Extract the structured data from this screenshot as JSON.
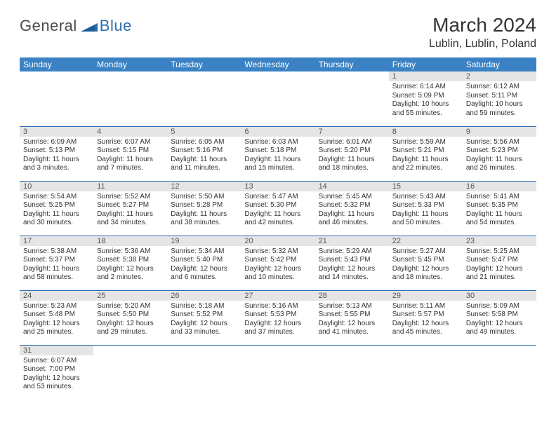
{
  "brand": {
    "general": "General",
    "blue": "Blue"
  },
  "title": "March 2024",
  "location": "Lublin, Lublin, Poland",
  "header_bg": "#3b82c4",
  "border_color": "#2a6db0",
  "daynum_bg": "#e5e5e5",
  "dayNames": [
    "Sunday",
    "Monday",
    "Tuesday",
    "Wednesday",
    "Thursday",
    "Friday",
    "Saturday"
  ],
  "weeks": [
    [
      null,
      null,
      null,
      null,
      null,
      {
        "n": "1",
        "sr": "Sunrise: 6:14 AM",
        "ss": "Sunset: 5:09 PM",
        "dl": "Daylight: 10 hours and 55 minutes."
      },
      {
        "n": "2",
        "sr": "Sunrise: 6:12 AM",
        "ss": "Sunset: 5:11 PM",
        "dl": "Daylight: 10 hours and 59 minutes."
      }
    ],
    [
      {
        "n": "3",
        "sr": "Sunrise: 6:09 AM",
        "ss": "Sunset: 5:13 PM",
        "dl": "Daylight: 11 hours and 3 minutes."
      },
      {
        "n": "4",
        "sr": "Sunrise: 6:07 AM",
        "ss": "Sunset: 5:15 PM",
        "dl": "Daylight: 11 hours and 7 minutes."
      },
      {
        "n": "5",
        "sr": "Sunrise: 6:05 AM",
        "ss": "Sunset: 5:16 PM",
        "dl": "Daylight: 11 hours and 11 minutes."
      },
      {
        "n": "6",
        "sr": "Sunrise: 6:03 AM",
        "ss": "Sunset: 5:18 PM",
        "dl": "Daylight: 11 hours and 15 minutes."
      },
      {
        "n": "7",
        "sr": "Sunrise: 6:01 AM",
        "ss": "Sunset: 5:20 PM",
        "dl": "Daylight: 11 hours and 18 minutes."
      },
      {
        "n": "8",
        "sr": "Sunrise: 5:59 AM",
        "ss": "Sunset: 5:21 PM",
        "dl": "Daylight: 11 hours and 22 minutes."
      },
      {
        "n": "9",
        "sr": "Sunrise: 5:56 AM",
        "ss": "Sunset: 5:23 PM",
        "dl": "Daylight: 11 hours and 26 minutes."
      }
    ],
    [
      {
        "n": "10",
        "sr": "Sunrise: 5:54 AM",
        "ss": "Sunset: 5:25 PM",
        "dl": "Daylight: 11 hours and 30 minutes."
      },
      {
        "n": "11",
        "sr": "Sunrise: 5:52 AM",
        "ss": "Sunset: 5:27 PM",
        "dl": "Daylight: 11 hours and 34 minutes."
      },
      {
        "n": "12",
        "sr": "Sunrise: 5:50 AM",
        "ss": "Sunset: 5:28 PM",
        "dl": "Daylight: 11 hours and 38 minutes."
      },
      {
        "n": "13",
        "sr": "Sunrise: 5:47 AM",
        "ss": "Sunset: 5:30 PM",
        "dl": "Daylight: 11 hours and 42 minutes."
      },
      {
        "n": "14",
        "sr": "Sunrise: 5:45 AM",
        "ss": "Sunset: 5:32 PM",
        "dl": "Daylight: 11 hours and 46 minutes."
      },
      {
        "n": "15",
        "sr": "Sunrise: 5:43 AM",
        "ss": "Sunset: 5:33 PM",
        "dl": "Daylight: 11 hours and 50 minutes."
      },
      {
        "n": "16",
        "sr": "Sunrise: 5:41 AM",
        "ss": "Sunset: 5:35 PM",
        "dl": "Daylight: 11 hours and 54 minutes."
      }
    ],
    [
      {
        "n": "17",
        "sr": "Sunrise: 5:38 AM",
        "ss": "Sunset: 5:37 PM",
        "dl": "Daylight: 11 hours and 58 minutes."
      },
      {
        "n": "18",
        "sr": "Sunrise: 5:36 AM",
        "ss": "Sunset: 5:38 PM",
        "dl": "Daylight: 12 hours and 2 minutes."
      },
      {
        "n": "19",
        "sr": "Sunrise: 5:34 AM",
        "ss": "Sunset: 5:40 PM",
        "dl": "Daylight: 12 hours and 6 minutes."
      },
      {
        "n": "20",
        "sr": "Sunrise: 5:32 AM",
        "ss": "Sunset: 5:42 PM",
        "dl": "Daylight: 12 hours and 10 minutes."
      },
      {
        "n": "21",
        "sr": "Sunrise: 5:29 AM",
        "ss": "Sunset: 5:43 PM",
        "dl": "Daylight: 12 hours and 14 minutes."
      },
      {
        "n": "22",
        "sr": "Sunrise: 5:27 AM",
        "ss": "Sunset: 5:45 PM",
        "dl": "Daylight: 12 hours and 18 minutes."
      },
      {
        "n": "23",
        "sr": "Sunrise: 5:25 AM",
        "ss": "Sunset: 5:47 PM",
        "dl": "Daylight: 12 hours and 21 minutes."
      }
    ],
    [
      {
        "n": "24",
        "sr": "Sunrise: 5:23 AM",
        "ss": "Sunset: 5:48 PM",
        "dl": "Daylight: 12 hours and 25 minutes."
      },
      {
        "n": "25",
        "sr": "Sunrise: 5:20 AM",
        "ss": "Sunset: 5:50 PM",
        "dl": "Daylight: 12 hours and 29 minutes."
      },
      {
        "n": "26",
        "sr": "Sunrise: 5:18 AM",
        "ss": "Sunset: 5:52 PM",
        "dl": "Daylight: 12 hours and 33 minutes."
      },
      {
        "n": "27",
        "sr": "Sunrise: 5:16 AM",
        "ss": "Sunset: 5:53 PM",
        "dl": "Daylight: 12 hours and 37 minutes."
      },
      {
        "n": "28",
        "sr": "Sunrise: 5:13 AM",
        "ss": "Sunset: 5:55 PM",
        "dl": "Daylight: 12 hours and 41 minutes."
      },
      {
        "n": "29",
        "sr": "Sunrise: 5:11 AM",
        "ss": "Sunset: 5:57 PM",
        "dl": "Daylight: 12 hours and 45 minutes."
      },
      {
        "n": "30",
        "sr": "Sunrise: 5:09 AM",
        "ss": "Sunset: 5:58 PM",
        "dl": "Daylight: 12 hours and 49 minutes."
      }
    ],
    [
      {
        "n": "31",
        "sr": "Sunrise: 6:07 AM",
        "ss": "Sunset: 7:00 PM",
        "dl": "Daylight: 12 hours and 53 minutes."
      },
      null,
      null,
      null,
      null,
      null,
      null
    ]
  ]
}
